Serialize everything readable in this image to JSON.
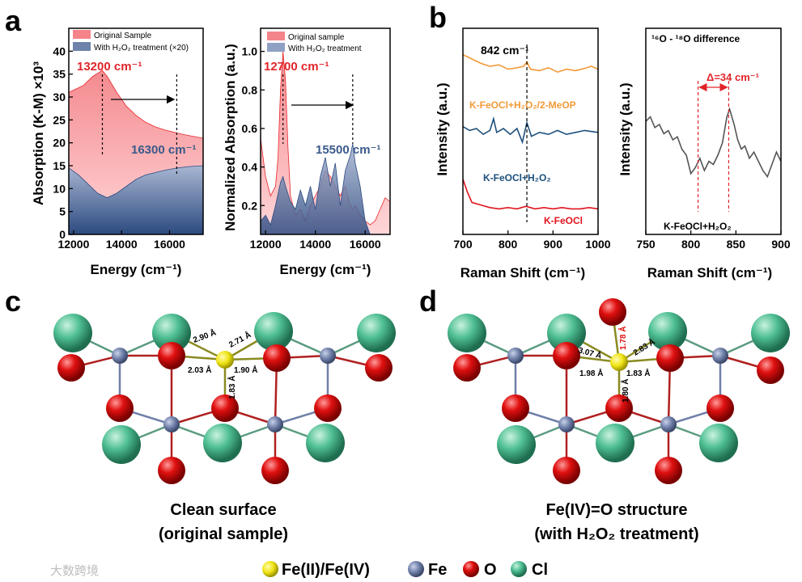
{
  "figure": {
    "panel_labels": [
      "a",
      "b",
      "c",
      "d"
    ],
    "colors": {
      "red": "#e8262b",
      "red_fill": "#f4848a",
      "navy": "#2c4a80",
      "navy_fill": "#4a6490",
      "orange": "#f29a38",
      "blue_line": "#1d4f7c",
      "red_line": "#e0141e",
      "gray_line": "#555555",
      "fe_yellow": "#f0e515",
      "fe_blue": "#6f7fa8",
      "o_red": "#e01010",
      "cl_green": "#4fbf93",
      "label_red": "#e1252b",
      "label_navy": "#3a5a8a"
    }
  },
  "chart_data": [
    {
      "id": "a-left",
      "type": "area",
      "ylabel": "Absorption (K-M) ×10³",
      "xlabel": "Energy (cm⁻¹)",
      "xlim": [
        11800,
        17400
      ],
      "ylim": [
        0,
        45
      ],
      "xticks": [
        12000,
        14000,
        16000
      ],
      "yticks": [
        0,
        5,
        10,
        15,
        20,
        25,
        30,
        35,
        40
      ],
      "series": [
        {
          "name": "Original Sample",
          "x": [
            11800,
            12000,
            12400,
            12800,
            13100,
            13200,
            13400,
            13800,
            14200,
            14600,
            15000,
            15400,
            15800,
            16200,
            16600,
            17000,
            17400
          ],
          "y": [
            31,
            31.5,
            32.5,
            34.5,
            35.5,
            35.8,
            34.5,
            31,
            28,
            26,
            24.5,
            23.5,
            22.8,
            22.3,
            21.8,
            21.4,
            21
          ]
        },
        {
          "name": "With H2O2 treatment (×20)",
          "x": [
            11800,
            12200,
            12600,
            13000,
            13400,
            13800,
            14200,
            14600,
            15000,
            15400,
            15800,
            16300,
            16800,
            17400
          ],
          "y": [
            14.5,
            13,
            11,
            9,
            8,
            9,
            10.5,
            12,
            13,
            13.5,
            14,
            14.5,
            14.8,
            15
          ]
        }
      ],
      "annotations": [
        {
          "text": "13200 cm⁻¹",
          "x": 13200
        },
        {
          "text": "16300 cm⁻¹",
          "x": 16300
        }
      ],
      "legend": [
        "Original Sample",
        "With H₂O₂ treatment (×20)"
      ]
    },
    {
      "id": "a-right",
      "type": "area",
      "ylabel": "Normalized Absorption (a.u.)",
      "xlabel": "Energy (cm⁻¹)",
      "xlim": [
        11800,
        17000
      ],
      "ylim": [
        0.05,
        1.12
      ],
      "xticks": [
        12000,
        14000,
        16000
      ],
      "yticks": [
        0.2,
        0.4,
        0.6,
        0.8,
        1.0
      ],
      "series": [
        {
          "name": "Original sample",
          "x": [
            11800,
            12000,
            12200,
            12400,
            12500,
            12600,
            12700,
            12800,
            12900,
            13000,
            13200,
            13400,
            13600,
            13800,
            14000,
            14200,
            14400,
            14600,
            14800,
            15000,
            15200,
            15400,
            15500,
            15600,
            15800,
            16000,
            16200,
            16400,
            16600,
            16800,
            17000
          ],
          "y": [
            0.55,
            0.35,
            0.25,
            0.3,
            0.45,
            0.8,
            1.0,
            0.85,
            0.5,
            0.25,
            0.15,
            0.18,
            0.12,
            0.2,
            0.25,
            0.3,
            0.38,
            0.35,
            0.3,
            0.25,
            0.3,
            0.2,
            0.18,
            0.2,
            0.15,
            0.12,
            0.1,
            0.12,
            0.18,
            0.24,
            0.22
          ]
        },
        {
          "name": "With H2O2 treatment",
          "x": [
            11800,
            12000,
            12200,
            12400,
            12600,
            12700,
            12800,
            13000,
            13200,
            13400,
            13600,
            13800,
            14000,
            14200,
            14400,
            14600,
            14800,
            15000,
            15200,
            15400,
            15500,
            15600,
            15800,
            16000,
            16200,
            16400,
            16600
          ],
          "y": [
            0.12,
            0.15,
            0.1,
            0.2,
            0.32,
            0.35,
            0.3,
            0.22,
            0.18,
            0.28,
            0.2,
            0.3,
            0.18,
            0.35,
            0.45,
            0.3,
            0.42,
            0.2,
            0.38,
            0.46,
            0.52,
            0.42,
            0.3,
            0.12,
            0.05,
            0.05,
            0.05
          ]
        }
      ],
      "annotations": [
        {
          "text": "12700 cm⁻¹",
          "x": 12700
        },
        {
          "text": "15500 cm⁻¹",
          "x": 15500
        }
      ],
      "legend": [
        "Original sample",
        "With H₂O₂ treatment"
      ]
    },
    {
      "id": "b-left",
      "type": "line",
      "ylabel": "Intensity (a.u.)",
      "xlabel": "Raman Shift (cm⁻¹)",
      "xlim": [
        700,
        1000
      ],
      "xticks": [
        700,
        800,
        900,
        1000
      ],
      "marker_x": 842,
      "marker_label": "842 cm⁻¹",
      "series": [
        {
          "name": "K-FeOCl+H₂O₂/2-MeOP",
          "x": [
            700,
            720,
            740,
            760,
            780,
            800,
            820,
            835,
            842,
            850,
            870,
            890,
            910,
            930,
            950,
            970,
            985,
            1000
          ],
          "y": [
            86,
            80,
            74,
            70,
            72,
            66,
            68,
            70,
            76,
            66,
            64,
            68,
            62,
            66,
            64,
            67,
            70,
            66
          ]
        },
        {
          "name": "K-FeOCl+H₂O₂",
          "x": [
            700,
            715,
            730,
            745,
            760,
            768,
            775,
            790,
            805,
            820,
            832,
            842,
            852,
            870,
            890,
            910,
            930,
            950,
            970,
            1000
          ],
          "y": [
            42,
            38,
            40,
            34,
            38,
            50,
            36,
            40,
            34,
            40,
            26,
            46,
            32,
            36,
            34,
            38,
            34,
            36,
            38,
            36
          ]
        },
        {
          "name": "K-FeOCl",
          "x": [
            700,
            710,
            720,
            740,
            760,
            780,
            800,
            820,
            840,
            860,
            880,
            900,
            920,
            940,
            960,
            980,
            1000
          ],
          "y": [
            24,
            14,
            6,
            4,
            2,
            1,
            2,
            1,
            3,
            1,
            2,
            1,
            2,
            1,
            1,
            2,
            1
          ]
        }
      ]
    },
    {
      "id": "b-right",
      "type": "line",
      "title": "¹⁶O - ¹⁸O difference",
      "ylabel": "Intensity (a.u.)",
      "xlabel": "Raman Shift (cm⁻¹)",
      "xlim": [
        750,
        900
      ],
      "xticks": [
        750,
        800,
        850,
        900
      ],
      "marker_x": [
        808,
        842
      ],
      "delta_label": "Δ=34 cm⁻¹",
      "sample_label": "K-FeOCl+H₂O₂",
      "series": [
        {
          "name": "K-FeOCl+H₂O₂",
          "x": [
            750,
            755,
            760,
            765,
            770,
            775,
            780,
            785,
            790,
            795,
            800,
            805,
            810,
            815,
            820,
            825,
            830,
            835,
            840,
            843,
            848,
            852,
            856,
            860,
            865,
            870,
            875,
            880,
            885,
            890,
            895,
            900
          ],
          "y": [
            52,
            55,
            48,
            50,
            44,
            46,
            40,
            42,
            34,
            30,
            18,
            22,
            28,
            20,
            26,
            24,
            30,
            38,
            55,
            60,
            50,
            40,
            34,
            36,
            28,
            32,
            26,
            20,
            16,
            24,
            32,
            26
          ]
        }
      ]
    }
  ],
  "panel_c": {
    "caption_line1": "Clean surface",
    "caption_line2": "(original sample)",
    "bonds": [
      "2.90 Å",
      "2.71 Å",
      "2.03 Å",
      "1.90 Å",
      "1.83 Å"
    ]
  },
  "panel_d": {
    "caption_line1": "Fe(IV)=O structure",
    "caption_line2": "(with H₂O₂ treatment)",
    "bonds": [
      "3.07 Å",
      "2.83 Å",
      "1.98 Å",
      "1.83 Å",
      "1.80 Å",
      "1.78 Å"
    ]
  },
  "legend_atoms": [
    "Fe(II)/Fe(IV)",
    "Fe",
    "O",
    "Cl"
  ],
  "watermark": "大数跨境"
}
